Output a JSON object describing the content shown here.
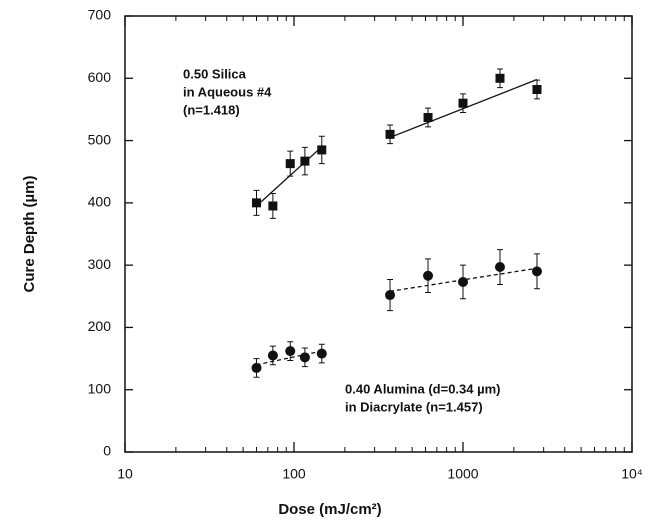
{
  "chart_data": {
    "type": "scatter",
    "xlabel": "Dose (mJ/cm²)",
    "ylabel": "Cure Depth (µm)",
    "xscale": "log",
    "xlim": [
      10,
      10000
    ],
    "xticks": [
      10,
      100,
      1000,
      {
        "value": 10000,
        "label": "10⁴"
      }
    ],
    "ylim": [
      0,
      700
    ],
    "yticks": [
      0,
      100,
      200,
      300,
      400,
      500,
      600,
      700
    ],
    "annotations": [
      {
        "lines": [
          "0.50 Silica",
          "in Aqueous #4",
          "(n=1.418)"
        ]
      },
      {
        "lines": [
          "0.40 Alumina (d=0.34 µm)",
          "in Diacrylate (n=1.457)"
        ]
      }
    ],
    "series": [
      {
        "marker": "square",
        "color": "#111111",
        "x": [
          60,
          75,
          95,
          116,
          146,
          370,
          621,
          1000,
          1655,
          2740
        ],
        "values": [
          400,
          395,
          463,
          467,
          485,
          510,
          537,
          560,
          600,
          582
        ],
        "errors": [
          20,
          20,
          20,
          22,
          22,
          15,
          15,
          15,
          15,
          15
        ]
      },
      {
        "marker": "circle",
        "color": "#111111",
        "x": [
          60,
          75,
          95,
          116,
          146,
          370,
          621,
          1000,
          1655,
          2740
        ],
        "values": [
          135,
          155,
          162,
          152,
          158,
          252,
          283,
          273,
          297,
          290
        ],
        "errors": [
          15,
          15,
          15,
          15,
          15,
          25,
          27,
          27,
          28,
          28
        ]
      }
    ],
    "fits": [
      {
        "dash": false,
        "color": "#111111",
        "x": [
          60,
          146
        ],
        "values": [
          395,
          490
        ]
      },
      {
        "dash": false,
        "color": "#111111",
        "x": [
          370,
          2740
        ],
        "values": [
          505,
          598
        ]
      },
      {
        "dash": true,
        "color": "#111111",
        "x": [
          60,
          146
        ],
        "values": [
          140,
          162
        ]
      },
      {
        "dash": true,
        "color": "#111111",
        "x": [
          370,
          2740
        ],
        "values": [
          258,
          295
        ]
      }
    ]
  }
}
